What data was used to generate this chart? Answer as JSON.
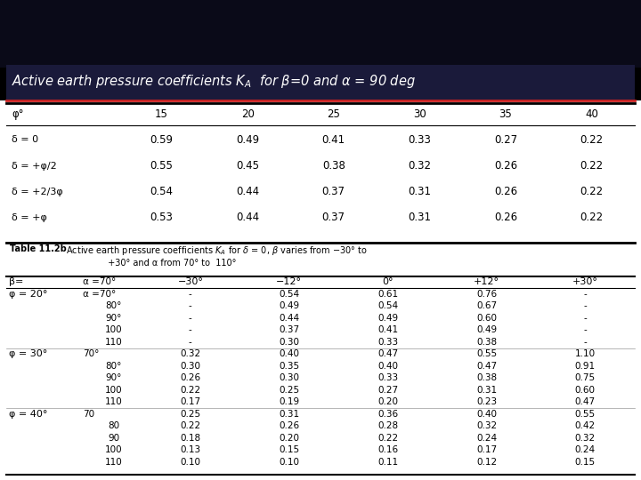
{
  "title": "Active earth pressure coefficients $K_A$  for $\\beta$=0 and $\\alpha$ = 90 deg",
  "bg_dark": "#0d0d1a",
  "bg_title_bar": "#1e1e3a",
  "title_color": "white",
  "title_underline_color": "#cc2222",
  "table1": {
    "col_headers": [
      "φ°",
      "15",
      "20",
      "25",
      "30",
      "35",
      "40"
    ],
    "row_headers": [
      "δ = 0",
      "δ = +φ/2",
      "δ = +2/3φ",
      "δ = +φ"
    ],
    "data": [
      [
        "0.59",
        "0.49",
        "0.41",
        "0.33",
        "0.27",
        "0.22"
      ],
      [
        "0.55",
        "0.45",
        "0.38",
        "0.32",
        "0.26",
        "0.22"
      ],
      [
        "0.54",
        "0.44",
        "0.37",
        "0.31",
        "0.26",
        "0.22"
      ],
      [
        "0.53",
        "0.44",
        "0.37",
        "0.31",
        "0.26",
        "0.22"
      ]
    ]
  },
  "table2_caption_bold": "Table 11.2b",
  "table2_caption_normal": "   Active earth pressure coefficients $K_A$ for $\\delta$ = 0, $\\beta$ varies from −30° to\n                  +30° and α from 70° to  110°",
  "table2": {
    "beta_header": "β=",
    "alpha_header": "α =70°",
    "beta_cols": [
      "−30°",
      "−12°",
      "0°",
      "+12°",
      "+30°"
    ],
    "phi_groups": [
      {
        "phi_label": "φ = 20°",
        "alpha_vals": [
          "α =70°",
          "80°",
          "90°",
          "100",
          "110"
        ],
        "data": [
          [
            "-",
            "0.54",
            "0.61",
            "0.76",
            "-"
          ],
          [
            "-",
            "0.49",
            "0.54",
            "0.67",
            "-"
          ],
          [
            "-",
            "0.44",
            "0.49",
            "0.60",
            "-"
          ],
          [
            "-",
            "0.37",
            "0.41",
            "0.49",
            "-"
          ],
          [
            "-",
            "0.30",
            "0.33",
            "0.38",
            "-"
          ]
        ]
      },
      {
        "phi_label": "φ = 30°",
        "alpha_vals": [
          "70°",
          "80°",
          "90°",
          "100",
          "110"
        ],
        "data": [
          [
            "0.32",
            "0.40",
            "0.47",
            "0.55",
            "1.10"
          ],
          [
            "0.30",
            "0.35",
            "0.40",
            "0.47",
            "0.91"
          ],
          [
            "0.26",
            "0.30",
            "0.33",
            "0.38",
            "0.75"
          ],
          [
            "0.22",
            "0.25",
            "0.27",
            "0.31",
            "0.60"
          ],
          [
            "0.17",
            "0.19",
            "0.20",
            "0.23",
            "0.47"
          ]
        ]
      },
      {
        "phi_label": "φ = 40°",
        "alpha_vals": [
          "70",
          "80",
          "90",
          "100",
          "110"
        ],
        "data": [
          [
            "0.25",
            "0.31",
            "0.36",
            "0.40",
            "0.55"
          ],
          [
            "0.22",
            "0.26",
            "0.28",
            "0.32",
            "0.42"
          ],
          [
            "0.18",
            "0.20",
            "0.22",
            "0.24",
            "0.32"
          ],
          [
            "0.13",
            "0.15",
            "0.16",
            "0.17",
            "0.24"
          ],
          [
            "0.10",
            "0.10",
            "0.11",
            "0.12",
            "0.15"
          ]
        ]
      }
    ]
  }
}
